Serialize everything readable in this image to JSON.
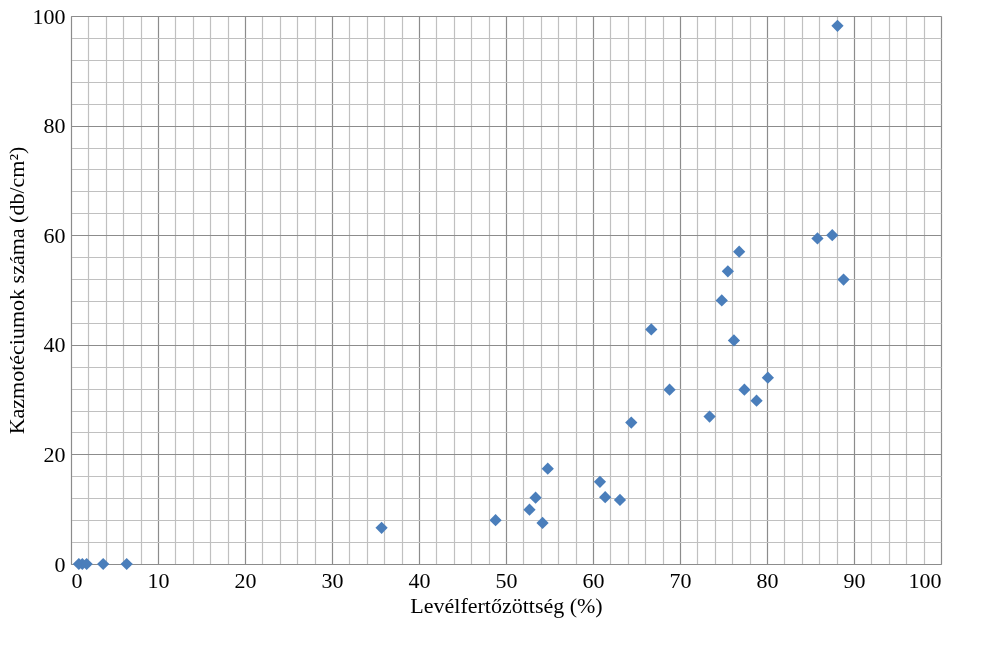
{
  "chart_data": {
    "type": "scatter",
    "xlabel": "Levélfertőzöttség (%)",
    "ylabel": "Kazmotéciumok száma (db/cm²)",
    "x": [
      0.9,
      1.3,
      1.8,
      3.7,
      6.4,
      35.7,
      48.8,
      52.7,
      53.4,
      54.2,
      54.8,
      60.8,
      61.4,
      63.1,
      64.4,
      66.7,
      68.8,
      73.4,
      74.8,
      75.5,
      76.2,
      76.8,
      77.4,
      78.8,
      80.1,
      85.8,
      87.5,
      88.1,
      88.8
    ],
    "series": [
      {
        "color": "#4a7ebb",
        "values": [
          0,
          0,
          0,
          0,
          0,
          6.6,
          8.0,
          9.9,
          12.1,
          7.5,
          17.4,
          15.0,
          12.2,
          11.7,
          25.8,
          42.8,
          31.8,
          26.9,
          48.1,
          53.4,
          40.8,
          57.0,
          31.8,
          29.8,
          34.0,
          59.4,
          60.0,
          98.2,
          51.9
        ]
      }
    ],
    "xlim": [
      0,
      100
    ],
    "ylim": [
      0,
      100
    ],
    "xticks": [
      0,
      10,
      20,
      30,
      40,
      50,
      60,
      70,
      80,
      90,
      100
    ],
    "yticks": [
      0,
      20,
      40,
      60,
      80,
      100
    ],
    "grid": true,
    "marker": "diamond"
  }
}
